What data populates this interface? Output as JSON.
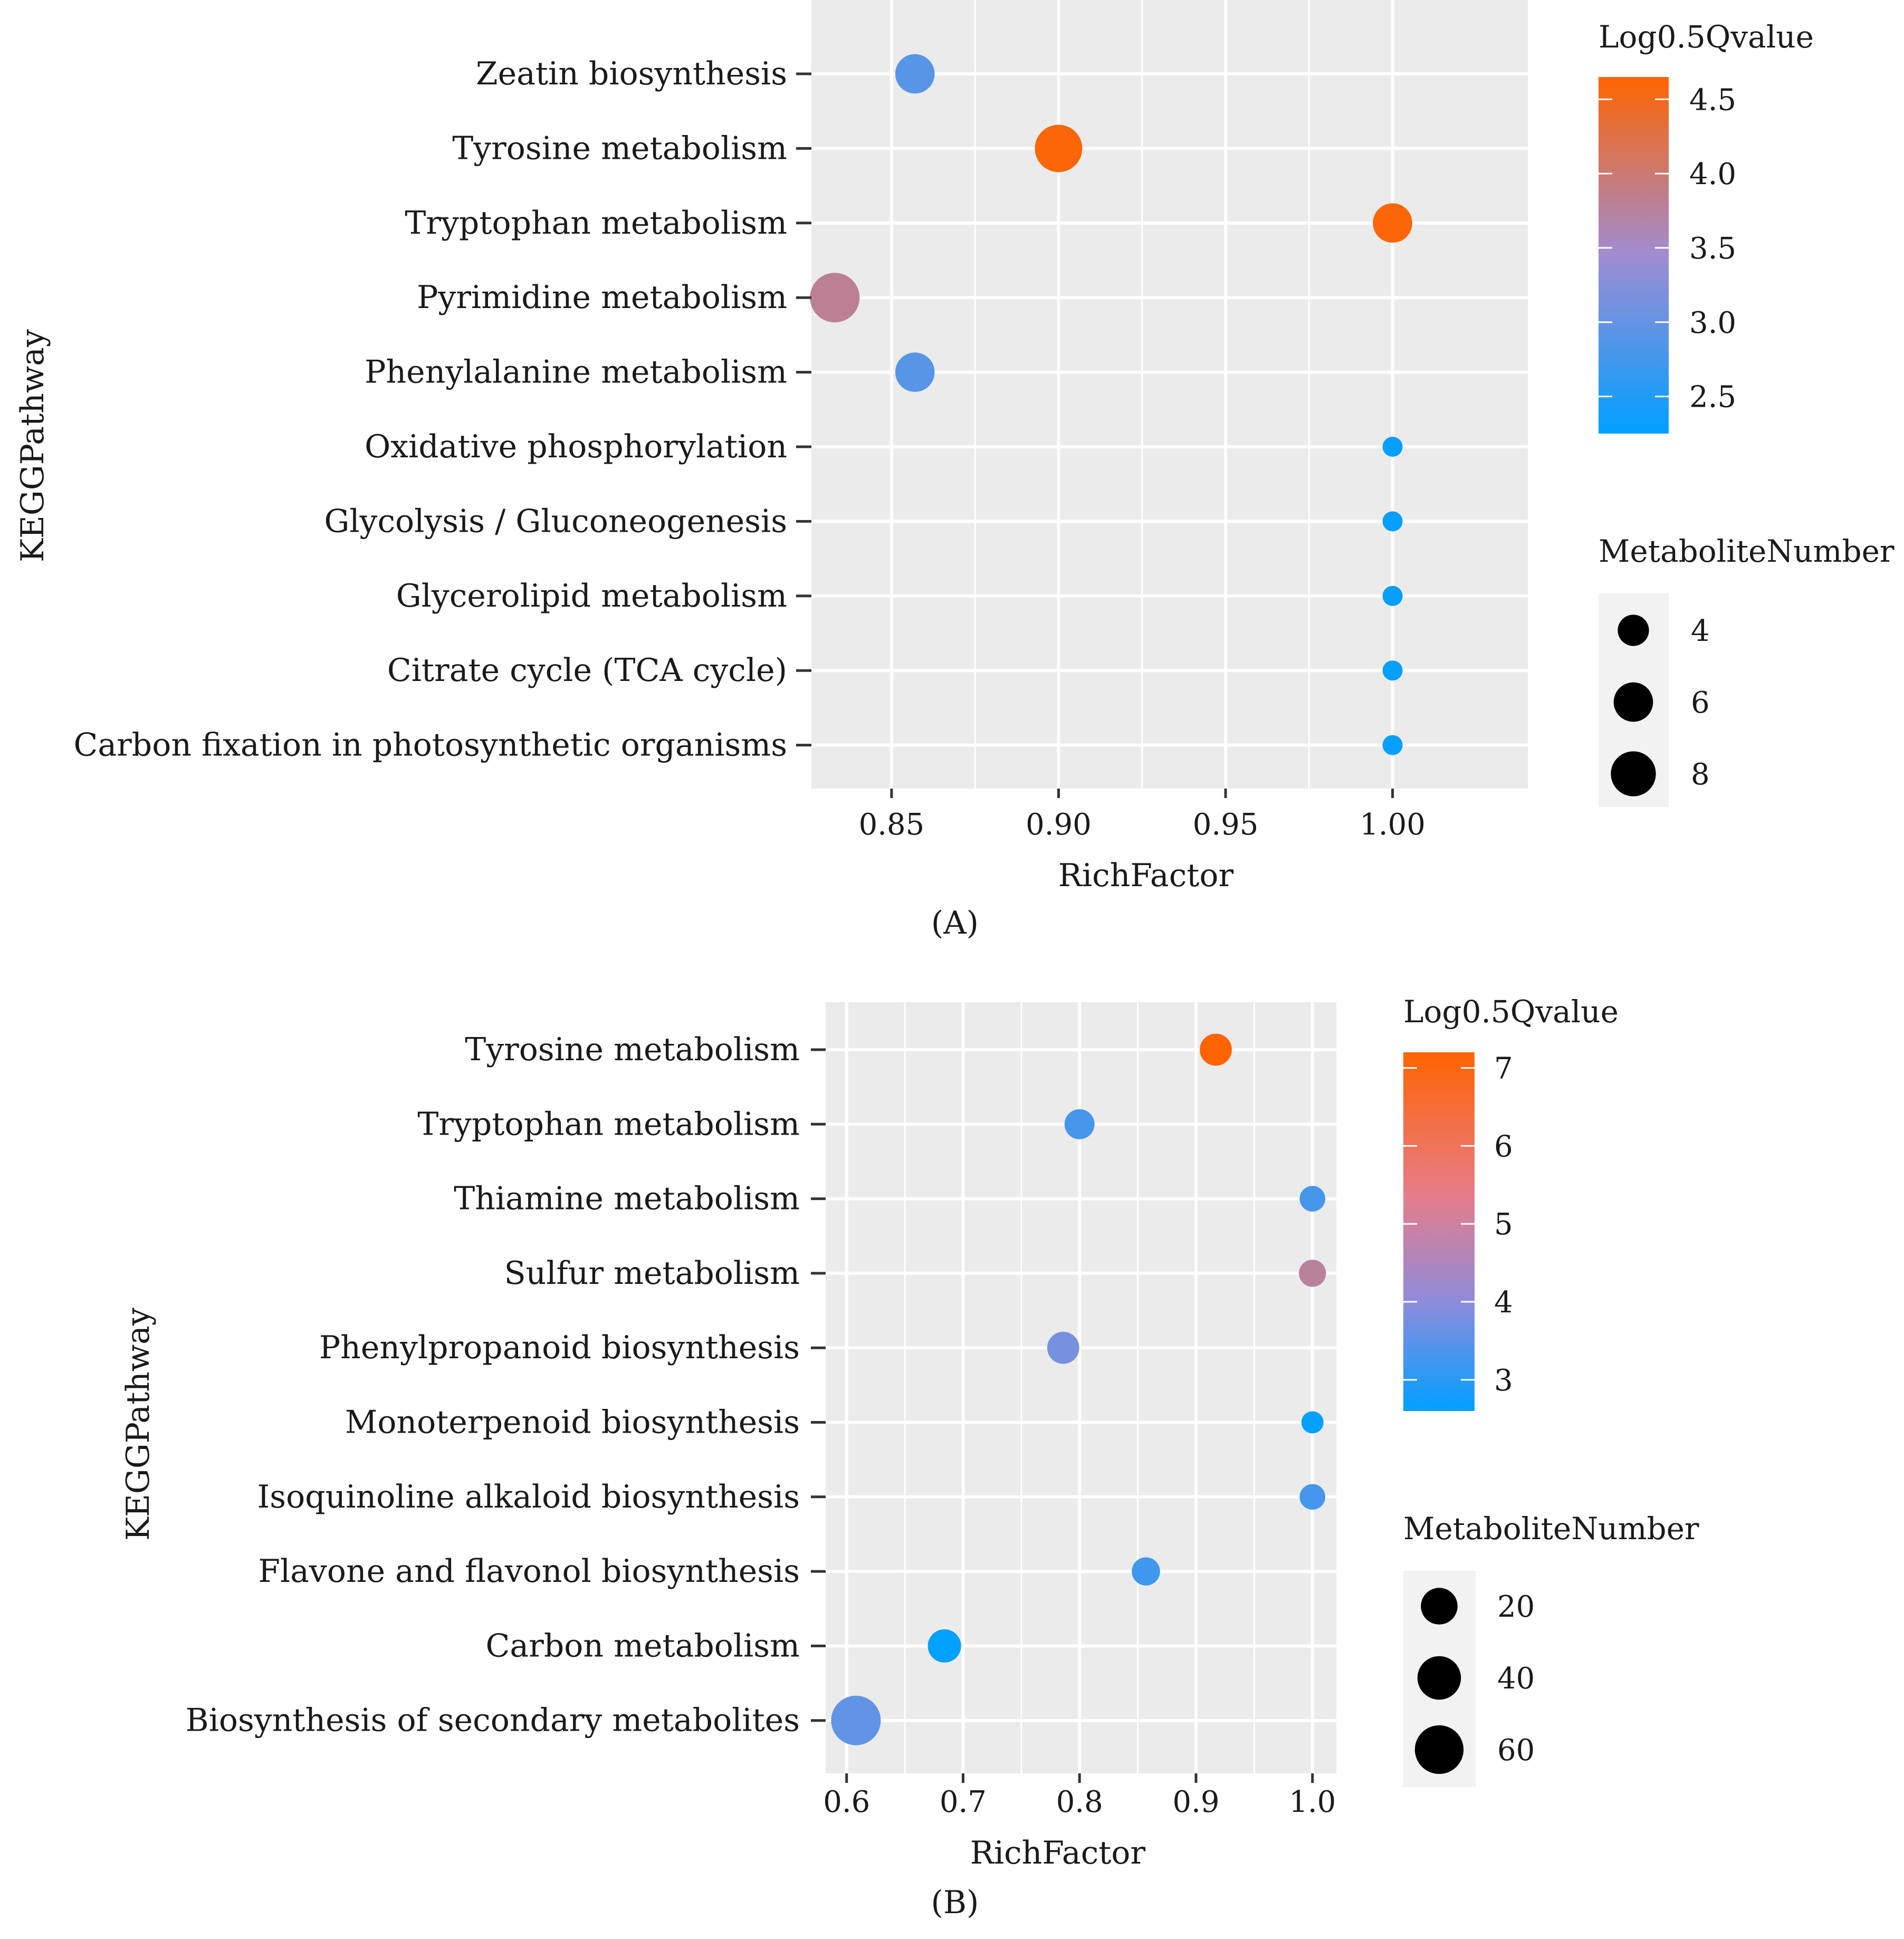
{
  "colors": {
    "panel_bg": "#EBEBEB",
    "grid": "#FFFFFF",
    "tick": "#333333",
    "low": "#00A0FF",
    "mid": "#A08CD2",
    "high": "#FF6400"
  },
  "chart_data": [
    {
      "type": "scatter",
      "caption": "(A)",
      "xlabel": "RichFactor",
      "ylabel": "KEGGPathway",
      "xlim": [
        0.826,
        1.0405
      ],
      "xticks": [
        0.85,
        0.9,
        0.95,
        1.0
      ],
      "xtick_labels": [
        "0.85",
        "0.90",
        "0.95",
        "1.00"
      ],
      "categories": [
        "Zeatin biosynthesis",
        "Tyrosine metabolism",
        "Tryptophan metabolism",
        "Pyrimidine metabolism",
        "Phenylalanine metabolism",
        "Oxidative phosphorylation",
        "Glycolysis / Gluconeogenesis",
        "Glycerolipid metabolism",
        "Citrate cycle (TCA cycle)",
        "Carbon fixation in photosynthetic organisms"
      ],
      "points": [
        {
          "pathway": "Zeatin biosynthesis",
          "rich_factor": 0.857,
          "log05_qvalue": 2.9,
          "metabolite_number": 6
        },
        {
          "pathway": "Tyrosine metabolism",
          "rich_factor": 0.9,
          "log05_qvalue": 4.6,
          "metabolite_number": 9
        },
        {
          "pathway": "Tryptophan metabolism",
          "rich_factor": 1.0,
          "log05_qvalue": 4.6,
          "metabolite_number": 6
        },
        {
          "pathway": "Pyrimidine metabolism",
          "rich_factor": 0.833,
          "log05_qvalue": 3.8,
          "metabolite_number": 10
        },
        {
          "pathway": "Phenylalanine metabolism",
          "rich_factor": 0.857,
          "log05_qvalue": 2.9,
          "metabolite_number": 6
        },
        {
          "pathway": "Oxidative phosphorylation",
          "rich_factor": 1.0,
          "log05_qvalue": 2.3,
          "metabolite_number": 3
        },
        {
          "pathway": "Glycolysis / Gluconeogenesis",
          "rich_factor": 1.0,
          "log05_qvalue": 2.3,
          "metabolite_number": 3
        },
        {
          "pathway": "Glycerolipid metabolism",
          "rich_factor": 1.0,
          "log05_qvalue": 2.3,
          "metabolite_number": 3
        },
        {
          "pathway": "Citrate cycle (TCA cycle)",
          "rich_factor": 1.0,
          "log05_qvalue": 2.3,
          "metabolite_number": 3
        },
        {
          "pathway": "Carbon fixation in photosynthetic organisms",
          "rich_factor": 1.0,
          "log05_qvalue": 2.3,
          "metabolite_number": 3
        }
      ],
      "color_legend": {
        "title": "Log0.5Qvalue",
        "range": [
          2.25,
          4.65
        ],
        "ticks": [
          2.5,
          3.0,
          3.5,
          4.0,
          4.5
        ],
        "tick_labels": [
          "2.5",
          "3.0",
          "3.5",
          "4.0",
          "4.5"
        ]
      },
      "size_legend": {
        "title": "MetaboliteNumber",
        "range": [
          3,
          10
        ],
        "values": [
          4,
          6,
          8
        ],
        "labels": [
          "4",
          "6",
          "8"
        ]
      }
    },
    {
      "type": "scatter",
      "caption": "(B)",
      "xlabel": "RichFactor",
      "ylabel": "KEGGPathway",
      "xlim": [
        0.582,
        1.0205
      ],
      "xticks": [
        0.6,
        0.7,
        0.8,
        0.9,
        1.0
      ],
      "xtick_labels": [
        "0.6",
        "0.7",
        "0.8",
        "0.9",
        "1.0"
      ],
      "categories": [
        "Tyrosine metabolism",
        "Tryptophan metabolism",
        "Thiamine metabolism",
        "Sulfur metabolism",
        "Phenylpropanoid biosynthesis",
        "Monoterpenoid biosynthesis",
        "Isoquinoline alkaloid biosynthesis",
        "Flavone and flavonol biosynthesis",
        "Carbon metabolism",
        "Biosynthesis of secondary metabolites"
      ],
      "points": [
        {
          "pathway": "Tyrosine metabolism",
          "rich_factor": 0.917,
          "log05_qvalue": 7.2,
          "metabolite_number": 11
        },
        {
          "pathway": "Tryptophan metabolism",
          "rich_factor": 0.8,
          "log05_qvalue": 3.6,
          "metabolite_number": 8
        },
        {
          "pathway": "Thiamine metabolism",
          "rich_factor": 1.0,
          "log05_qvalue": 3.6,
          "metabolite_number": 4
        },
        {
          "pathway": "Sulfur metabolism",
          "rich_factor": 1.0,
          "log05_qvalue": 5.5,
          "metabolite_number": 5
        },
        {
          "pathway": "Phenylpropanoid biosynthesis",
          "rich_factor": 0.786,
          "log05_qvalue": 4.3,
          "metabolite_number": 11
        },
        {
          "pathway": "Monoterpenoid biosynthesis",
          "rich_factor": 1.0,
          "log05_qvalue": 2.6,
          "metabolite_number": 3
        },
        {
          "pathway": "Isoquinoline alkaloid biosynthesis",
          "rich_factor": 1.0,
          "log05_qvalue": 3.6,
          "metabolite_number": 4
        },
        {
          "pathway": "Flavone and flavonol biosynthesis",
          "rich_factor": 0.857,
          "log05_qvalue": 3.5,
          "metabolite_number": 6
        },
        {
          "pathway": "Carbon metabolism",
          "rich_factor": 0.684,
          "log05_qvalue": 2.6,
          "metabolite_number": 13
        },
        {
          "pathway": "Biosynthesis of secondary metabolites",
          "rich_factor": 0.608,
          "log05_qvalue": 4.0,
          "metabolite_number": 64
        }
      ],
      "color_legend": {
        "title": "Log0.5Qvalue",
        "range": [
          2.6,
          7.2
        ],
        "ticks": [
          3,
          4,
          5,
          6,
          7
        ],
        "tick_labels": [
          "3",
          "4",
          "5",
          "6",
          "7"
        ]
      },
      "size_legend": {
        "title": "MetaboliteNumber",
        "range": [
          3,
          64
        ],
        "values": [
          20,
          40,
          60
        ],
        "labels": [
          "20",
          "40",
          "60"
        ]
      }
    }
  ]
}
